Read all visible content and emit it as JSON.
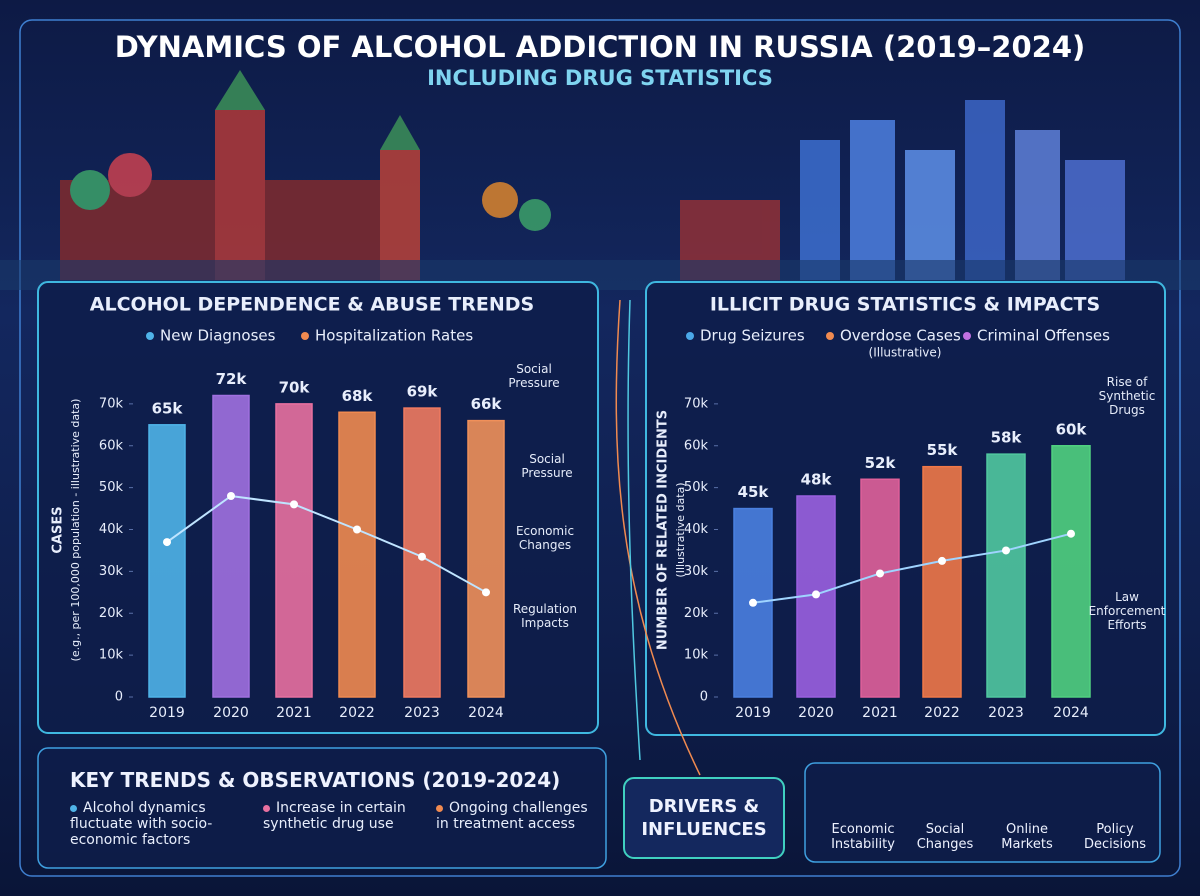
{
  "header": {
    "title": "DYNAMICS OF ALCOHOL ADDICTION IN RUSSIA (2019–2024)",
    "subtitle": "INCLUDING DRUG STATISTICS"
  },
  "chart_data": [
    {
      "type": "bar",
      "title": "ALCOHOL DEPENDENCE & ABUSE TRENDS",
      "y_label": "CASES",
      "y_sublabel": "(e.g., per 100,000 population - illustrative data)",
      "categories": [
        "2019",
        "2020",
        "2021",
        "2022",
        "2023",
        "2024"
      ],
      "series": [
        {
          "name": "New Diagnoses",
          "color": "#4fb3e8",
          "values": [
            65000,
            72000,
            70000,
            68000,
            69000,
            66000
          ],
          "value_labels": [
            "65k",
            "72k",
            "70k",
            "68k",
            "69k",
            "66k"
          ]
        },
        {
          "name": "Hospitalization Rates",
          "color": "#f08a50",
          "type": "line",
          "values": [
            37000,
            48000,
            46000,
            40000,
            33500,
            25000
          ]
        }
      ],
      "bar_colors": [
        "#4fb3e8",
        "#a070e0",
        "#e870a0",
        "#f08a50",
        "#f07a60",
        "#f0905a"
      ],
      "line_color": "#bfe4ff",
      "ylim": [
        0,
        80000
      ],
      "yticks": [
        0,
        {
          "value": 10000,
          "label": "10k"
        },
        {
          "value": 20000,
          "label": "20k"
        },
        {
          "value": 30000,
          "label": "30k"
        },
        {
          "value": 40000,
          "label": "40k"
        },
        {
          "value": 50000,
          "label": "50k"
        },
        {
          "value": 60000,
          "label": "60k"
        },
        {
          "value": 70000,
          "label": "70k"
        }
      ],
      "annotations": [
        "Social Pressure",
        "Social Pressure",
        "Economic Changes",
        "Regulation Impacts"
      ]
    },
    {
      "type": "bar",
      "title": "ILLICIT DRUG STATISTICS & IMPACTS",
      "y_label": "NUMBER OF RELATED INCIDENTS",
      "y_sublabel": "(Illustrative data)",
      "legend_note": "(Illustrative)",
      "categories": [
        "2019",
        "2020",
        "2021",
        "2022",
        "2023",
        "2024"
      ],
      "series": [
        {
          "name": "Drug Seizures",
          "color": "#4aa8e8",
          "values": [
            45000,
            48000,
            52000,
            55000,
            58000,
            60000
          ],
          "value_labels": [
            "45k",
            "48k",
            "52k",
            "55k",
            "58k",
            "60k"
          ]
        },
        {
          "name": "Overdose Cases",
          "color": "#f08a50",
          "type": "line",
          "values": [
            22500,
            24500,
            29500,
            32500,
            35000,
            39000
          ]
        },
        {
          "name": "Criminal Offenses",
          "color": "#c070e0",
          "type": "line",
          "values": [
            null,
            null,
            null,
            null,
            null,
            null
          ]
        }
      ],
      "bar_colors": [
        "#4a80e0",
        "#9a60e0",
        "#e0609a",
        "#f07848",
        "#50c8a0",
        "#50d080"
      ],
      "line_color": "#9fd4ff",
      "value_label_colors": [
        "#ffffff",
        "#ffffff",
        "#ffffff",
        "#ffffff",
        "#7ff0b0",
        "#7ff0b0"
      ],
      "ylim": [
        0,
        80000
      ],
      "yticks": [
        0,
        {
          "value": 10000,
          "label": "10k"
        },
        {
          "value": 20000,
          "label": "20k"
        },
        {
          "value": 30000,
          "label": "30k"
        },
        {
          "value": 40000,
          "label": "40k"
        },
        {
          "value": 50000,
          "label": "50k"
        },
        {
          "value": 60000,
          "label": "60k"
        },
        {
          "value": 70000,
          "label": "70k"
        }
      ],
      "annotations": [
        "Rise of Synthetic Drugs",
        "Law Enforcement Efforts"
      ]
    }
  ],
  "key_trends": {
    "title": "KEY TRENDS & OBSERVATIONS (2019-2024)",
    "items": [
      "Alcohol dynamics fluctuate with socio-economic factors",
      "Increase in certain synthetic drug use",
      "Ongoing challenges in treatment access"
    ]
  },
  "drivers": {
    "title": "DRIVERS & INFLUENCES",
    "items": [
      "Economic Instability",
      "Social Changes",
      "Online Markets",
      "Policy Decisions"
    ]
  }
}
